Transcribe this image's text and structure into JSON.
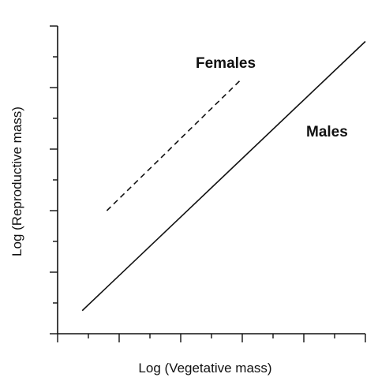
{
  "chart_data": {
    "type": "line",
    "title": "",
    "xlabel": "Log (Vegetative mass)",
    "ylabel": "Log (Reproductive mass)",
    "xlim": [
      0,
      10
    ],
    "ylim": [
      0,
      10
    ],
    "grid": false,
    "legend": "none",
    "tick_labels": false,
    "series": [
      {
        "name": "Females",
        "style": "dashed",
        "color": "#111111",
        "x": [
          1.6,
          6.0
        ],
        "y": [
          4.0,
          8.3
        ]
      },
      {
        "name": "Males",
        "style": "solid",
        "color": "#111111",
        "x": [
          0.8,
          10.0
        ],
        "y": [
          0.75,
          9.5
        ]
      }
    ]
  }
}
